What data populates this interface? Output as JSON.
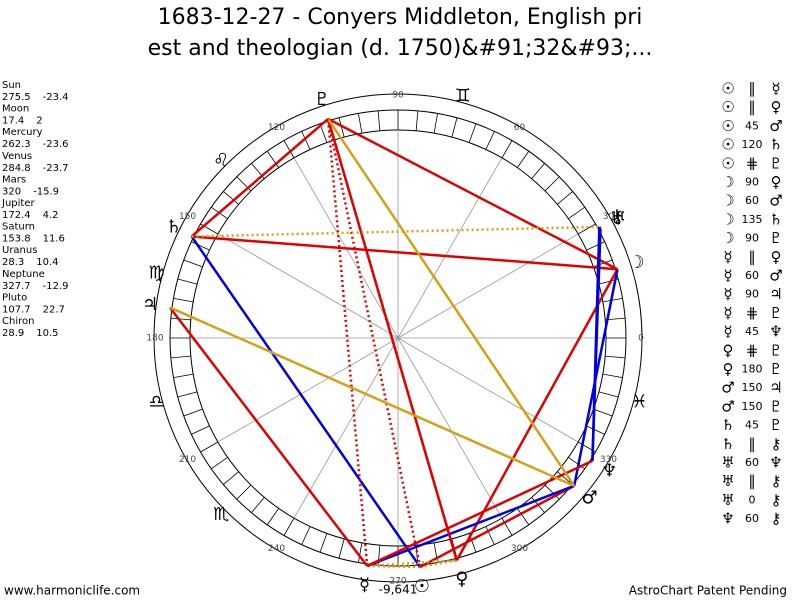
{
  "chart_data": {
    "type": "astro-wheel",
    "title_lines": [
      "1683-12-27 - Conyers Middleton, English pri",
      "est and theologian (d. 1750)&#91;32&#93;..."
    ],
    "planets": [
      {
        "name": "Sun",
        "glyph": "☉",
        "longitude": 275.5,
        "declination": -23.4
      },
      {
        "name": "Moon",
        "glyph": "☽",
        "longitude": 17.4,
        "declination": 2.0
      },
      {
        "name": "Mercury",
        "glyph": "☿",
        "longitude": 262.3,
        "declination": -23.6
      },
      {
        "name": "Venus",
        "glyph": "♀",
        "longitude": 284.8,
        "declination": -23.7
      },
      {
        "name": "Mars",
        "glyph": "♂",
        "longitude": 320.0,
        "declination": -15.9
      },
      {
        "name": "Jupiter",
        "glyph": "♃",
        "longitude": 172.4,
        "declination": 4.2
      },
      {
        "name": "Saturn",
        "glyph": "♄",
        "longitude": 153.8,
        "declination": 11.6
      },
      {
        "name": "Uranus",
        "glyph": "♅",
        "longitude": 28.3,
        "declination": 10.4
      },
      {
        "name": "Neptune",
        "glyph": "♆",
        "longitude": 327.7,
        "declination": -12.9
      },
      {
        "name": "Pluto",
        "glyph": "♇",
        "longitude": 107.7,
        "declination": 22.7
      },
      {
        "name": "Chiron",
        "glyph": "⚷",
        "longitude": 28.9,
        "declination": 10.5
      }
    ],
    "signs": [
      "♊",
      "♌",
      "♍",
      "♎",
      "♏",
      "♓"
    ],
    "degree_ticks": [
      0,
      30,
      60,
      90,
      120,
      150,
      180,
      210,
      240,
      270,
      300,
      330
    ],
    "aspects": [
      {
        "from": "☉",
        "aspect": "∥",
        "to": "☿"
      },
      {
        "from": "☉",
        "aspect": "∥",
        "to": "♀"
      },
      {
        "from": "☉",
        "aspect": 45,
        "to": "♂"
      },
      {
        "from": "☉",
        "aspect": 120,
        "to": "♄"
      },
      {
        "from": "☉",
        "aspect": "⋕",
        "to": "♇"
      },
      {
        "from": "☽",
        "aspect": 90,
        "to": "♀"
      },
      {
        "from": "☽",
        "aspect": 60,
        "to": "♂"
      },
      {
        "from": "☽",
        "aspect": 135,
        "to": "♄"
      },
      {
        "from": "☽",
        "aspect": 90,
        "to": "♇"
      },
      {
        "from": "☿",
        "aspect": "∥",
        "to": "♀"
      },
      {
        "from": "☿",
        "aspect": 60,
        "to": "♂"
      },
      {
        "from": "☿",
        "aspect": 90,
        "to": "♃"
      },
      {
        "from": "☿",
        "aspect": "⋕",
        "to": "♇"
      },
      {
        "from": "☿",
        "aspect": 45,
        "to": "♆"
      },
      {
        "from": "♀",
        "aspect": "⋕",
        "to": "♇"
      },
      {
        "from": "♀",
        "aspect": 180,
        "to": "♇"
      },
      {
        "from": "♂",
        "aspect": 150,
        "to": "♃"
      },
      {
        "from": "♂",
        "aspect": 150,
        "to": "♇"
      },
      {
        "from": "♄",
        "aspect": 45,
        "to": "♇"
      },
      {
        "from": "♄",
        "aspect": "∥",
        "to": "⚷"
      },
      {
        "from": "♅",
        "aspect": 60,
        "to": "♆"
      },
      {
        "from": "♅",
        "aspect": "∥",
        "to": "⚷"
      },
      {
        "from": "♅",
        "aspect": 0,
        "to": "⚷"
      },
      {
        "from": "♆",
        "aspect": 60,
        "to": "⚷"
      }
    ],
    "annotation": "-9,641",
    "footer_left": "www.harmoniclife.com",
    "footer_right": "AstroChart Patent Pending"
  }
}
